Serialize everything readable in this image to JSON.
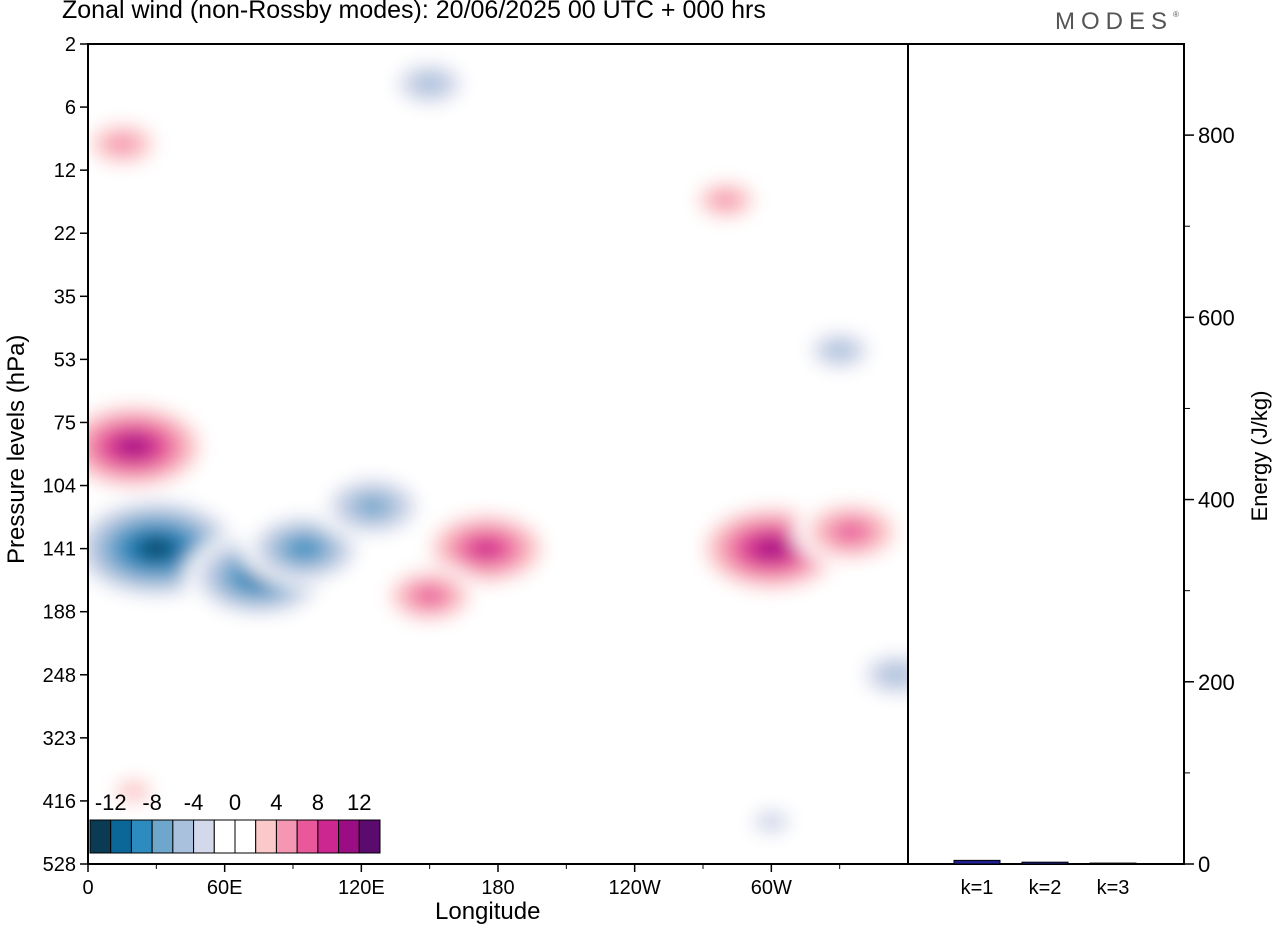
{
  "title": "Zonal wind (non-Rossby modes):  20/06/2025  00 UTC  + 000 hrs",
  "brand": "MODES",
  "brand_mark": "®",
  "colors": {
    "scale": [
      "#0b3a54",
      "#0c6799",
      "#2e8bc0",
      "#6fa6cc",
      "#a9c1dc",
      "#d3d8ea",
      "#ffffff",
      "#ffffff",
      "#fbc9c9",
      "#f597b2",
      "#e8589a",
      "#cc2690",
      "#9a0d83",
      "#5b0a6e"
    ]
  },
  "chart_data": [
    {
      "type": "heatmap",
      "title": "Zonal wind (non-Rossby modes):  20/06/2025  00 UTC  + 000 hrs",
      "xlabel": "Longitude",
      "ylabel": "Pressure levels (hPa)",
      "x_ticks": [
        "0",
        "60E",
        "120E",
        "180",
        "120W",
        "60W"
      ],
      "x_tick_values": [
        0,
        60,
        120,
        180,
        240,
        300
      ],
      "xlim": [
        0,
        360
      ],
      "y_ticks": [
        "2",
        "6",
        "12",
        "22",
        "35",
        "53",
        "75",
        "104",
        "141",
        "188",
        "248",
        "323",
        "416",
        "528"
      ],
      "colorbar_labels": [
        "-12",
        "-8",
        "-4",
        "0",
        "4",
        "8",
        "12"
      ],
      "colorbar_levels": [
        -14,
        -12,
        -10,
        -8,
        -6,
        -4,
        -2,
        0,
        2,
        4,
        6,
        8,
        10,
        12,
        14
      ],
      "features": [
        {
          "lon": 30,
          "level": "141",
          "value": -14
        },
        {
          "lon": 75,
          "level": "160",
          "value": -11
        },
        {
          "lon": 95,
          "level": "141",
          "value": -9
        },
        {
          "lon": 125,
          "level": "115",
          "value": -8
        },
        {
          "lon": 20,
          "level": "85",
          "value": 12
        },
        {
          "lon": 175,
          "level": "141",
          "value": 10
        },
        {
          "lon": 300,
          "level": "141",
          "value": 12
        },
        {
          "lon": 335,
          "level": "130",
          "value": 8
        },
        {
          "lon": 150,
          "level": "175",
          "value": 7
        },
        {
          "lon": 355,
          "level": "248",
          "value": -6
        },
        {
          "lon": 300,
          "level": "450",
          "value": -4
        },
        {
          "lon": 15,
          "level": "9",
          "value": 6
        },
        {
          "lon": 150,
          "level": "4",
          "value": -6
        },
        {
          "lon": 330,
          "level": "50",
          "value": -5
        },
        {
          "lon": 280,
          "level": "16",
          "value": 5
        },
        {
          "lon": 20,
          "level": "400",
          "value": 4
        }
      ]
    },
    {
      "type": "bar",
      "ylabel": "Energy (J/kg)",
      "categories": [
        "k=1",
        "k=2",
        "k=3"
      ],
      "values": [
        4,
        2,
        1
      ],
      "ylim": [
        0,
        900
      ],
      "y_ticks": [
        0,
        200,
        400,
        600,
        800
      ]
    }
  ]
}
